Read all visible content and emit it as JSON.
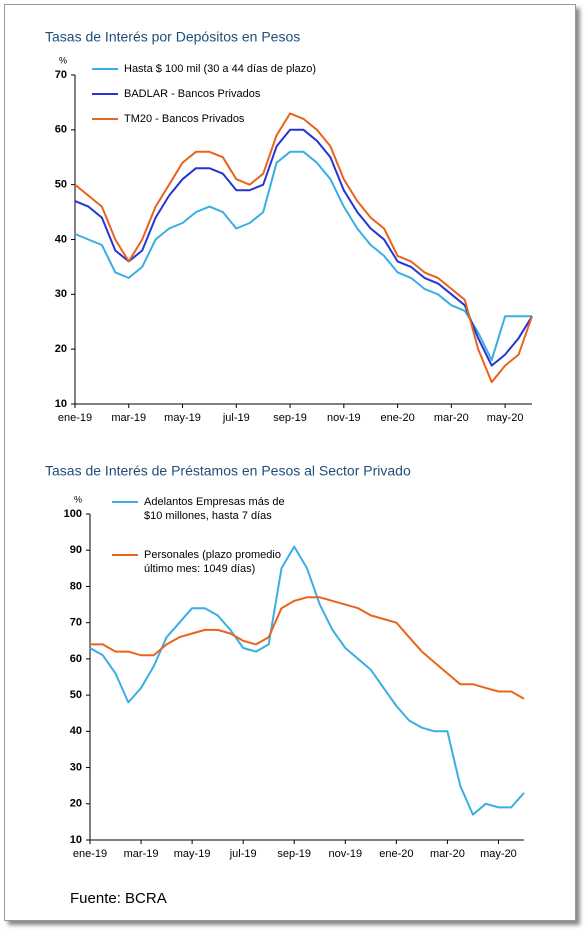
{
  "chart_data": [
    {
      "type": "line",
      "title": "Tasas de Interés por Depósitos en Pesos",
      "y_unit": "%",
      "categories": [
        "ene-19",
        null,
        null,
        null,
        "mar-19",
        null,
        null,
        null,
        "may-19",
        null,
        null,
        null,
        "jul-19",
        null,
        null,
        null,
        "sep-19",
        null,
        null,
        null,
        "nov-19",
        null,
        null,
        null,
        "ene-20",
        null,
        null,
        null,
        "mar-20",
        null,
        null,
        null,
        "may-20",
        null,
        null
      ],
      "series": [
        {
          "name": "Hasta $ 100 mil (30 a 44 días de plazo)",
          "color": "#3aaee4",
          "values": [
            41,
            40,
            39,
            34,
            33,
            35,
            40,
            42,
            43,
            45,
            46,
            45,
            42,
            43,
            45,
            54,
            56,
            56,
            54,
            51,
            46,
            42,
            39,
            37,
            34,
            33,
            31,
            30,
            28,
            27,
            23,
            18,
            26,
            26,
            26
          ]
        },
        {
          "name": "BADLAR - Bancos Privados",
          "color": "#2435d4",
          "values": [
            47,
            46,
            44,
            38,
            36,
            38,
            44,
            48,
            51,
            53,
            53,
            52,
            49,
            49,
            50,
            57,
            60,
            60,
            58,
            55,
            49,
            45,
            42,
            40,
            36,
            35,
            33,
            32,
            30,
            28,
            22,
            17,
            19,
            22,
            26
          ]
        },
        {
          "name": "TM20 - Bancos Privados",
          "color": "#e8641c",
          "values": [
            50,
            48,
            46,
            40,
            36,
            40,
            46,
            50,
            54,
            56,
            56,
            55,
            51,
            50,
            52,
            59,
            63,
            62,
            60,
            57,
            51,
            47,
            44,
            42,
            37,
            36,
            34,
            33,
            31,
            29,
            20,
            14,
            17,
            19,
            26
          ]
        }
      ],
      "ylim": [
        10,
        70
      ],
      "yticks": [
        10,
        20,
        30,
        40,
        50,
        60,
        70
      ]
    },
    {
      "type": "line",
      "title": "Tasas de Interés de Préstamos en Pesos al Sector Privado",
      "y_unit": "%",
      "categories": [
        "ene-19",
        null,
        null,
        null,
        "mar-19",
        null,
        null,
        null,
        "may-19",
        null,
        null,
        null,
        "jul-19",
        null,
        null,
        null,
        "sep-19",
        null,
        null,
        null,
        "nov-19",
        null,
        null,
        null,
        "ene-20",
        null,
        null,
        null,
        "mar-20",
        null,
        null,
        null,
        "may-20",
        null,
        null
      ],
      "series": [
        {
          "name": "Adelantos Empresas más de $10 millones, hasta 7 días",
          "color": "#3aaee4",
          "values": [
            63,
            61,
            56,
            48,
            52,
            58,
            66,
            70,
            74,
            74,
            72,
            68,
            63,
            62,
            64,
            85,
            91,
            85,
            75,
            68,
            63,
            60,
            57,
            52,
            47,
            43,
            41,
            40,
            40,
            25,
            17,
            20,
            19,
            19,
            23
          ]
        },
        {
          "name": "Personales (plazo promedio último mes: 1049 días)",
          "color": "#e8641c",
          "values": [
            64,
            64,
            62,
            62,
            61,
            61,
            64,
            66,
            67,
            68,
            68,
            67,
            65,
            64,
            66,
            74,
            76,
            77,
            77,
            76,
            75,
            74,
            72,
            71,
            70,
            66,
            62,
            59,
            56,
            53,
            53,
            52,
            51,
            51,
            49
          ]
        }
      ],
      "ylim": [
        10,
        100
      ],
      "yticks": [
        10,
        20,
        30,
        40,
        50,
        60,
        70,
        80,
        90,
        100
      ]
    }
  ],
  "source": "Fuente: BCRA"
}
